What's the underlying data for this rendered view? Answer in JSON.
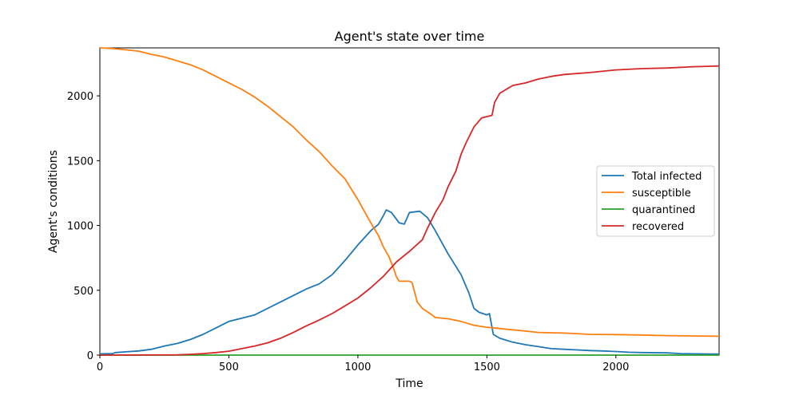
{
  "chart_data": {
    "type": "line",
    "title": "Agent's state over time",
    "xlabel": "Time",
    "ylabel": "Agent's conditions",
    "xlim": [
      0,
      2400
    ],
    "ylim": [
      0,
      2370
    ],
    "xticks": [
      0,
      500,
      1000,
      1500,
      2000
    ],
    "yticks": [
      0,
      500,
      1000,
      1500,
      2000
    ],
    "grid": false,
    "legend_position": "center-right",
    "series": [
      {
        "name": "Total infected",
        "color": "#1f77b4",
        "points": [
          [
            0,
            10
          ],
          [
            50,
            12
          ],
          [
            60,
            20
          ],
          [
            100,
            25
          ],
          [
            150,
            32
          ],
          [
            200,
            45
          ],
          [
            250,
            70
          ],
          [
            300,
            90
          ],
          [
            350,
            120
          ],
          [
            400,
            160
          ],
          [
            450,
            210
          ],
          [
            500,
            260
          ],
          [
            550,
            285
          ],
          [
            600,
            310
          ],
          [
            650,
            360
          ],
          [
            700,
            410
          ],
          [
            750,
            460
          ],
          [
            800,
            510
          ],
          [
            850,
            550
          ],
          [
            900,
            620
          ],
          [
            950,
            730
          ],
          [
            1000,
            850
          ],
          [
            1050,
            960
          ],
          [
            1080,
            1010
          ],
          [
            1100,
            1080
          ],
          [
            1110,
            1120
          ],
          [
            1130,
            1100
          ],
          [
            1160,
            1020
          ],
          [
            1180,
            1010
          ],
          [
            1200,
            1100
          ],
          [
            1240,
            1110
          ],
          [
            1270,
            1060
          ],
          [
            1300,
            960
          ],
          [
            1350,
            780
          ],
          [
            1400,
            620
          ],
          [
            1430,
            480
          ],
          [
            1450,
            360
          ],
          [
            1470,
            330
          ],
          [
            1500,
            310
          ],
          [
            1510,
            320
          ],
          [
            1525,
            160
          ],
          [
            1550,
            130
          ],
          [
            1600,
            100
          ],
          [
            1650,
            80
          ],
          [
            1700,
            65
          ],
          [
            1750,
            50
          ],
          [
            1800,
            45
          ],
          [
            1850,
            40
          ],
          [
            1900,
            35
          ],
          [
            1950,
            32
          ],
          [
            2000,
            28
          ],
          [
            2050,
            22
          ],
          [
            2100,
            20
          ],
          [
            2200,
            17
          ],
          [
            2250,
            12
          ],
          [
            2300,
            10
          ],
          [
            2400,
            8
          ]
        ]
      },
      {
        "name": "susceptible",
        "color": "#ff7f0e",
        "points": [
          [
            0,
            2370
          ],
          [
            50,
            2365
          ],
          [
            100,
            2355
          ],
          [
            150,
            2345
          ],
          [
            200,
            2320
          ],
          [
            250,
            2300
          ],
          [
            300,
            2270
          ],
          [
            350,
            2240
          ],
          [
            400,
            2200
          ],
          [
            450,
            2150
          ],
          [
            500,
            2100
          ],
          [
            550,
            2050
          ],
          [
            600,
            1990
          ],
          [
            650,
            1920
          ],
          [
            700,
            1840
          ],
          [
            750,
            1760
          ],
          [
            800,
            1660
          ],
          [
            850,
            1570
          ],
          [
            900,
            1460
          ],
          [
            950,
            1360
          ],
          [
            1000,
            1200
          ],
          [
            1050,
            1020
          ],
          [
            1080,
            920
          ],
          [
            1100,
            830
          ],
          [
            1120,
            760
          ],
          [
            1140,
            660
          ],
          [
            1150,
            600
          ],
          [
            1160,
            570
          ],
          [
            1200,
            570
          ],
          [
            1210,
            560
          ],
          [
            1230,
            410
          ],
          [
            1250,
            360
          ],
          [
            1280,
            320
          ],
          [
            1300,
            290
          ],
          [
            1350,
            280
          ],
          [
            1400,
            260
          ],
          [
            1450,
            230
          ],
          [
            1500,
            215
          ],
          [
            1550,
            205
          ],
          [
            1600,
            195
          ],
          [
            1650,
            185
          ],
          [
            1700,
            175
          ],
          [
            1800,
            170
          ],
          [
            1900,
            160
          ],
          [
            2000,
            158
          ],
          [
            2100,
            155
          ],
          [
            2200,
            150
          ],
          [
            2300,
            148
          ],
          [
            2400,
            145
          ]
        ]
      },
      {
        "name": "quarantined",
        "color": "#2ca02c",
        "points": [
          [
            0,
            0
          ],
          [
            2400,
            0
          ]
        ]
      },
      {
        "name": "recovered",
        "color": "#d62728",
        "points": [
          [
            0,
            0
          ],
          [
            300,
            2
          ],
          [
            350,
            6
          ],
          [
            400,
            12
          ],
          [
            450,
            20
          ],
          [
            500,
            30
          ],
          [
            550,
            50
          ],
          [
            600,
            70
          ],
          [
            650,
            95
          ],
          [
            700,
            130
          ],
          [
            750,
            175
          ],
          [
            800,
            225
          ],
          [
            850,
            270
          ],
          [
            900,
            320
          ],
          [
            950,
            380
          ],
          [
            1000,
            440
          ],
          [
            1050,
            520
          ],
          [
            1100,
            610
          ],
          [
            1150,
            720
          ],
          [
            1200,
            800
          ],
          [
            1250,
            890
          ],
          [
            1270,
            980
          ],
          [
            1300,
            1100
          ],
          [
            1330,
            1200
          ],
          [
            1350,
            1300
          ],
          [
            1380,
            1420
          ],
          [
            1400,
            1550
          ],
          [
            1420,
            1640
          ],
          [
            1450,
            1760
          ],
          [
            1480,
            1830
          ],
          [
            1520,
            1850
          ],
          [
            1530,
            1950
          ],
          [
            1550,
            2020
          ],
          [
            1600,
            2080
          ],
          [
            1650,
            2100
          ],
          [
            1700,
            2130
          ],
          [
            1750,
            2150
          ],
          [
            1800,
            2165
          ],
          [
            1900,
            2180
          ],
          [
            2000,
            2200
          ],
          [
            2100,
            2210
          ],
          [
            2200,
            2215
          ],
          [
            2300,
            2225
          ],
          [
            2400,
            2230
          ]
        ]
      }
    ]
  }
}
